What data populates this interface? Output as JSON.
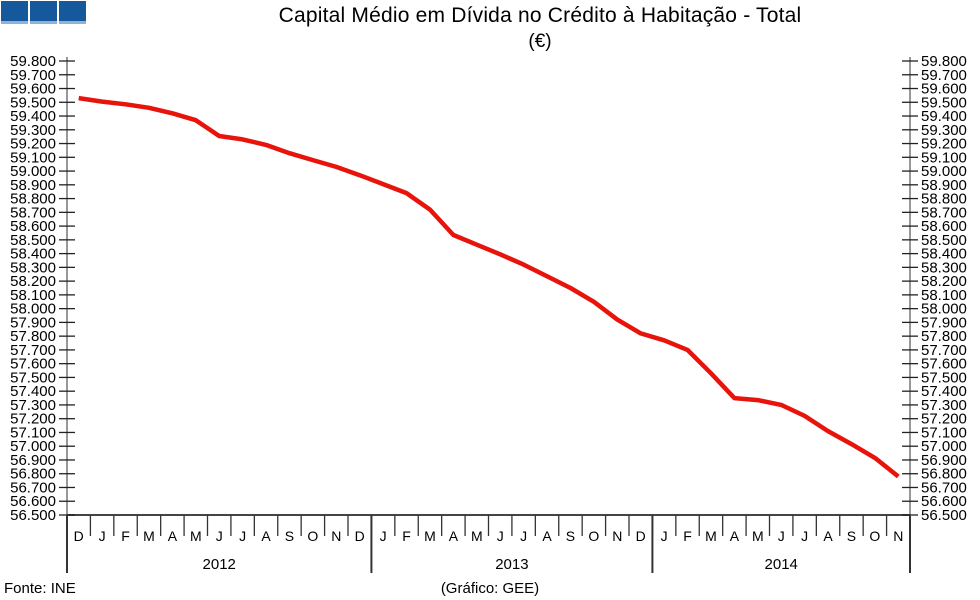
{
  "logo": {
    "fill": "#15599c",
    "edge": "#8fb3d1",
    "square_count": 3
  },
  "chart_data": {
    "type": "line",
    "title": "Capital Médio em Dívida no Crédito à Habitação - Total",
    "subtitle": "(€)",
    "ylim": [
      56500,
      59800
    ],
    "ytick_step": 100,
    "ytick_format": "thousands-dot",
    "axes": "mirrored-left-right-no-grid",
    "line_color": "#e8140c",
    "axis_color": "#777777",
    "tick_color": "#222222",
    "month_labels": [
      "D",
      "J",
      "F",
      "M",
      "A",
      "M",
      "J",
      "J",
      "A",
      "S",
      "O",
      "N",
      "D",
      "J",
      "F",
      "M",
      "A",
      "M",
      "J",
      "J",
      "A",
      "S",
      "O",
      "N",
      "D",
      "J",
      "F",
      "M",
      "A",
      "M",
      "J",
      "J",
      "A",
      "S",
      "O",
      "N"
    ],
    "year_groups": [
      {
        "label": "2012",
        "months": 13
      },
      {
        "label": "2013",
        "months": 12
      },
      {
        "label": "2014",
        "months": 11
      }
    ],
    "values": [
      59530,
      59505,
      59485,
      59460,
      59420,
      59370,
      59255,
      59230,
      59190,
      59130,
      59080,
      59030,
      58970,
      58905,
      58840,
      58720,
      58535,
      58465,
      58395,
      58320,
      58235,
      58150,
      58050,
      57920,
      57820,
      57770,
      57700,
      57530,
      57350,
      57335,
      57300,
      57220,
      57110,
      57015,
      56915,
      56780
    ]
  },
  "footer": {
    "source": "Fonte: INE",
    "credit": "(Gráfico: GEE)"
  }
}
